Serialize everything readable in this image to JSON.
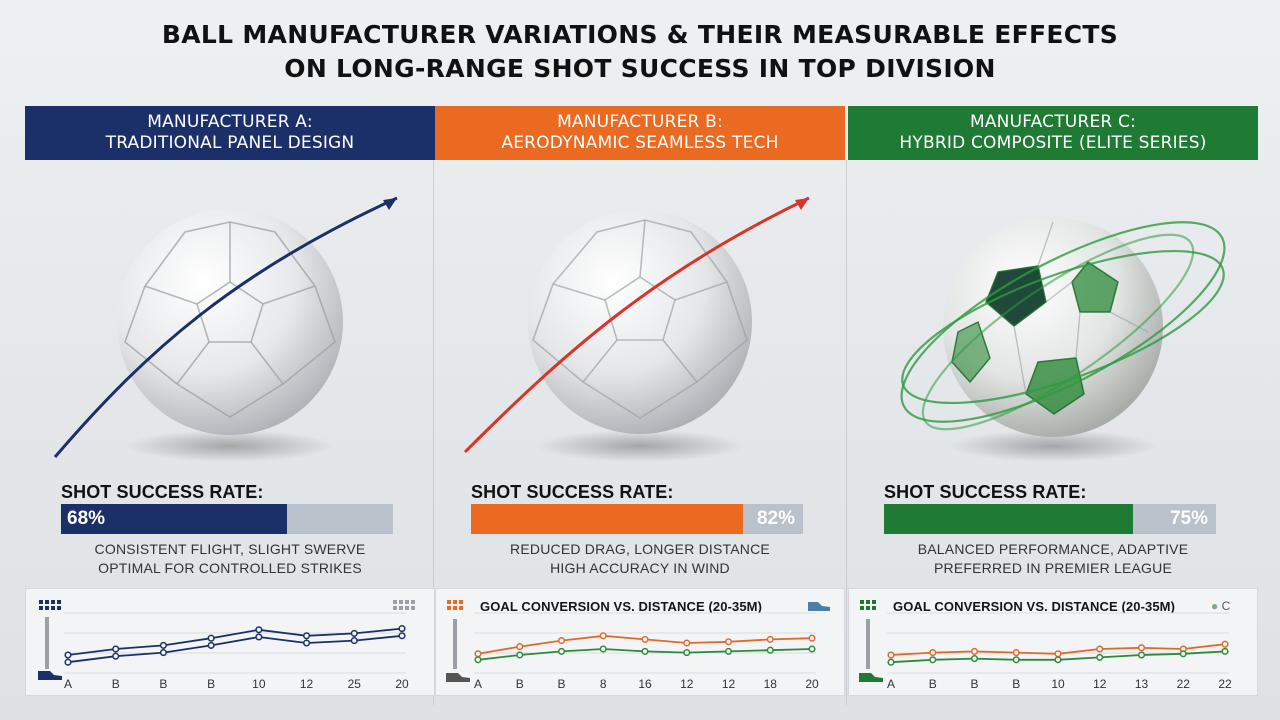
{
  "title": {
    "line1": "BALL MANUFACTURER VARIATIONS & THEIR MEASURABLE EFFECTS",
    "line2": "ON LONG-RANGE SHOT SUCCESS IN TOP DIVISION"
  },
  "panels": [
    {
      "header_line1": "MANUFACTURER A:",
      "header_line2": "TRADITIONAL PANEL DESIGN",
      "color": "#1b3068",
      "rate_label": "SHOT SUCCESS RATE:",
      "rate_text": "68%",
      "rate_value": 0.68,
      "desc_line1": "CONSISTENT FLIGHT, SLIGHT SWERVE",
      "desc_line2": "OPTIMAL FOR CONTROLLED STRIKES",
      "mini_title": "",
      "legend": "",
      "ticks": [
        "A",
        "B",
        "B",
        "B",
        "10",
        "12",
        "25",
        "20"
      ],
      "series": [
        {
          "color": "#1b3068",
          "values": [
            0.3,
            0.4,
            0.46,
            0.58,
            0.72,
            0.62,
            0.66,
            0.74
          ]
        },
        {
          "color": "#1b3068",
          "values": [
            0.18,
            0.28,
            0.34,
            0.46,
            0.6,
            0.5,
            0.54,
            0.62
          ]
        }
      ],
      "icons": [
        "stadium-lights-icon",
        "corner-flag-icon",
        "boot-icon"
      ]
    },
    {
      "header_line1": "MANUFACTURER B:",
      "header_line2": "AERODYNAMIC SEAMLESS TECH",
      "color": "#ea6a22",
      "rate_label": "SHOT SUCCESS RATE:",
      "rate_text": "82%",
      "rate_value": 0.82,
      "desc_line1": "REDUCED DRAG, LONGER DISTANCE",
      "desc_line2": "HIGH ACCURACY IN WIND",
      "mini_title": "GOAL CONVERSION VS. DISTANCE (20-35M)",
      "legend": "",
      "ticks": [
        "A",
        "B",
        "B",
        "8",
        "16",
        "12",
        "12",
        "18",
        "20"
      ],
      "series": [
        {
          "color": "#e06a2a",
          "values": [
            0.32,
            0.44,
            0.54,
            0.62,
            0.56,
            0.5,
            0.52,
            0.56,
            0.58
          ]
        },
        {
          "color": "#2e8a3a",
          "values": [
            0.22,
            0.3,
            0.36,
            0.4,
            0.36,
            0.34,
            0.36,
            0.38,
            0.4
          ]
        }
      ],
      "icons": [
        "stadium-lights-icon",
        "corner-flag-icon",
        "boot-icon"
      ]
    },
    {
      "header_line1": "MANUFACTURER C:",
      "header_line2": "HYBRID COMPOSITE (ELITE SERIES)",
      "color": "#1f7a34",
      "rate_label": "SHOT SUCCESS RATE:",
      "rate_text": "75%",
      "rate_value": 0.75,
      "desc_line1": "BALANCED PERFORMANCE, ADAPTIVE",
      "desc_line2": "PREFERRED IN PREMIER LEAGUE",
      "mini_title": "GOAL CONVERSION VS. DISTANCE (20-35M)",
      "legend": "C",
      "ticks": [
        "A",
        "B",
        "B",
        "B",
        "10",
        "12",
        "13",
        "22",
        "22"
      ],
      "series": [
        {
          "color": "#e06a2a",
          "values": [
            0.3,
            0.34,
            0.36,
            0.34,
            0.32,
            0.4,
            0.42,
            0.4,
            0.48
          ]
        },
        {
          "color": "#2e8a3a",
          "values": [
            0.18,
            0.22,
            0.24,
            0.22,
            0.22,
            0.26,
            0.3,
            0.32,
            0.36
          ]
        }
      ],
      "icons": [
        "stadium-lights-icon",
        "corner-flag-icon",
        "boot-icon"
      ]
    }
  ]
}
